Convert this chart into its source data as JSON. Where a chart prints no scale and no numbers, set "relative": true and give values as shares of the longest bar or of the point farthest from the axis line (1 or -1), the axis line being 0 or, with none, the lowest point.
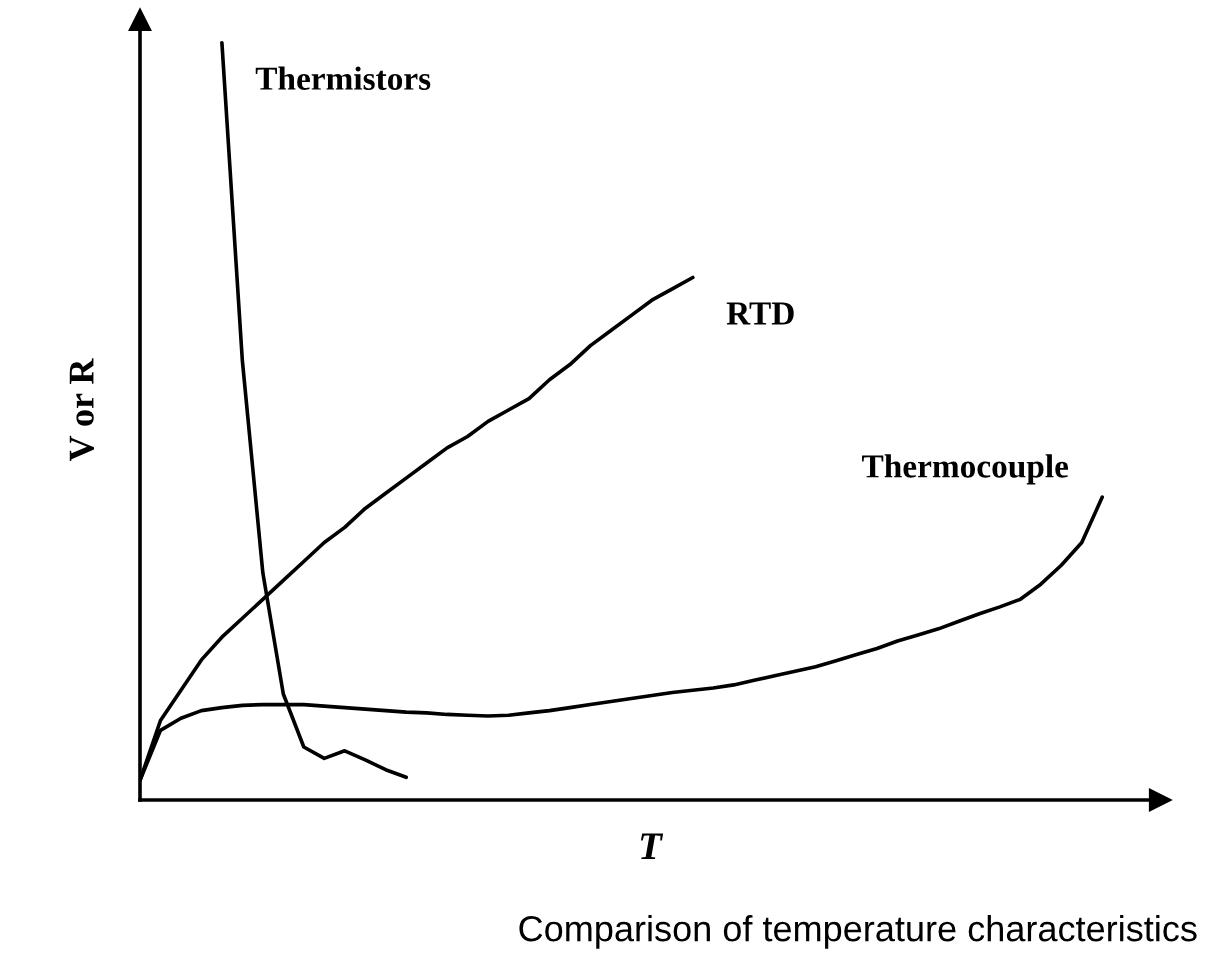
{
  "chart_data": {
    "type": "line",
    "relative": true,
    "xlabel": "T",
    "ylabel": "V or R",
    "legend": false,
    "marker": "none",
    "line_style": "solid",
    "annotations": [
      "Comparison of temperature characteristics"
    ],
    "categories": [
      null,
      null,
      null,
      null,
      null,
      null,
      null,
      null,
      null,
      null,
      null,
      null,
      null,
      null,
      null,
      null,
      null,
      null,
      null,
      null,
      null,
      null,
      null,
      null,
      null,
      null,
      null,
      null,
      null,
      null,
      null,
      null,
      null,
      null,
      null,
      null,
      null,
      null,
      null,
      null,
      null,
      null,
      null,
      null,
      null,
      null,
      null,
      null
    ],
    "series": [
      {
        "name": "Thermistors",
        "color": "#000000",
        "values": [
          null,
          null,
          null,
          null,
          1.0,
          0.58,
          0.3,
          0.14,
          0.07,
          0.055,
          0.065,
          0.053,
          0.04,
          0.03,
          null,
          null,
          null,
          null,
          null,
          null,
          null,
          null,
          null,
          null,
          null,
          null,
          null,
          null,
          null,
          null,
          null,
          null,
          null,
          null,
          null,
          null,
          null,
          null,
          null,
          null,
          null,
          null,
          null,
          null,
          null,
          null,
          null,
          null
        ]
      },
      {
        "name": "RTD",
        "color": "#000000",
        "values": [
          0.026,
          0.105,
          0.145,
          0.185,
          0.215,
          0.24,
          0.265,
          0.29,
          0.315,
          0.34,
          0.36,
          0.385,
          0.405,
          0.425,
          0.445,
          0.465,
          0.48,
          0.5,
          0.515,
          0.53,
          0.555,
          0.575,
          0.6,
          0.62,
          0.64,
          0.66,
          0.675,
          0.69,
          null,
          null,
          null,
          null,
          null,
          null,
          null,
          null,
          null,
          null,
          null,
          null,
          null,
          null,
          null,
          null,
          null,
          null,
          null,
          null
        ]
      },
      {
        "name": "Thermocouple",
        "color": "#000000",
        "values": [
          0.026,
          0.092,
          0.108,
          0.118,
          0.122,
          0.125,
          0.126,
          0.126,
          0.126,
          0.124,
          0.122,
          0.12,
          0.118,
          0.116,
          0.115,
          0.113,
          0.112,
          0.111,
          0.112,
          0.115,
          0.118,
          0.122,
          0.126,
          0.13,
          0.134,
          0.138,
          0.142,
          0.145,
          0.148,
          0.152,
          0.158,
          0.164,
          0.17,
          0.176,
          0.184,
          0.192,
          0.2,
          0.21,
          0.218,
          0.226,
          0.236,
          0.246,
          0.255,
          0.265,
          0.285,
          0.31,
          0.34,
          0.4
        ]
      }
    ]
  }
}
